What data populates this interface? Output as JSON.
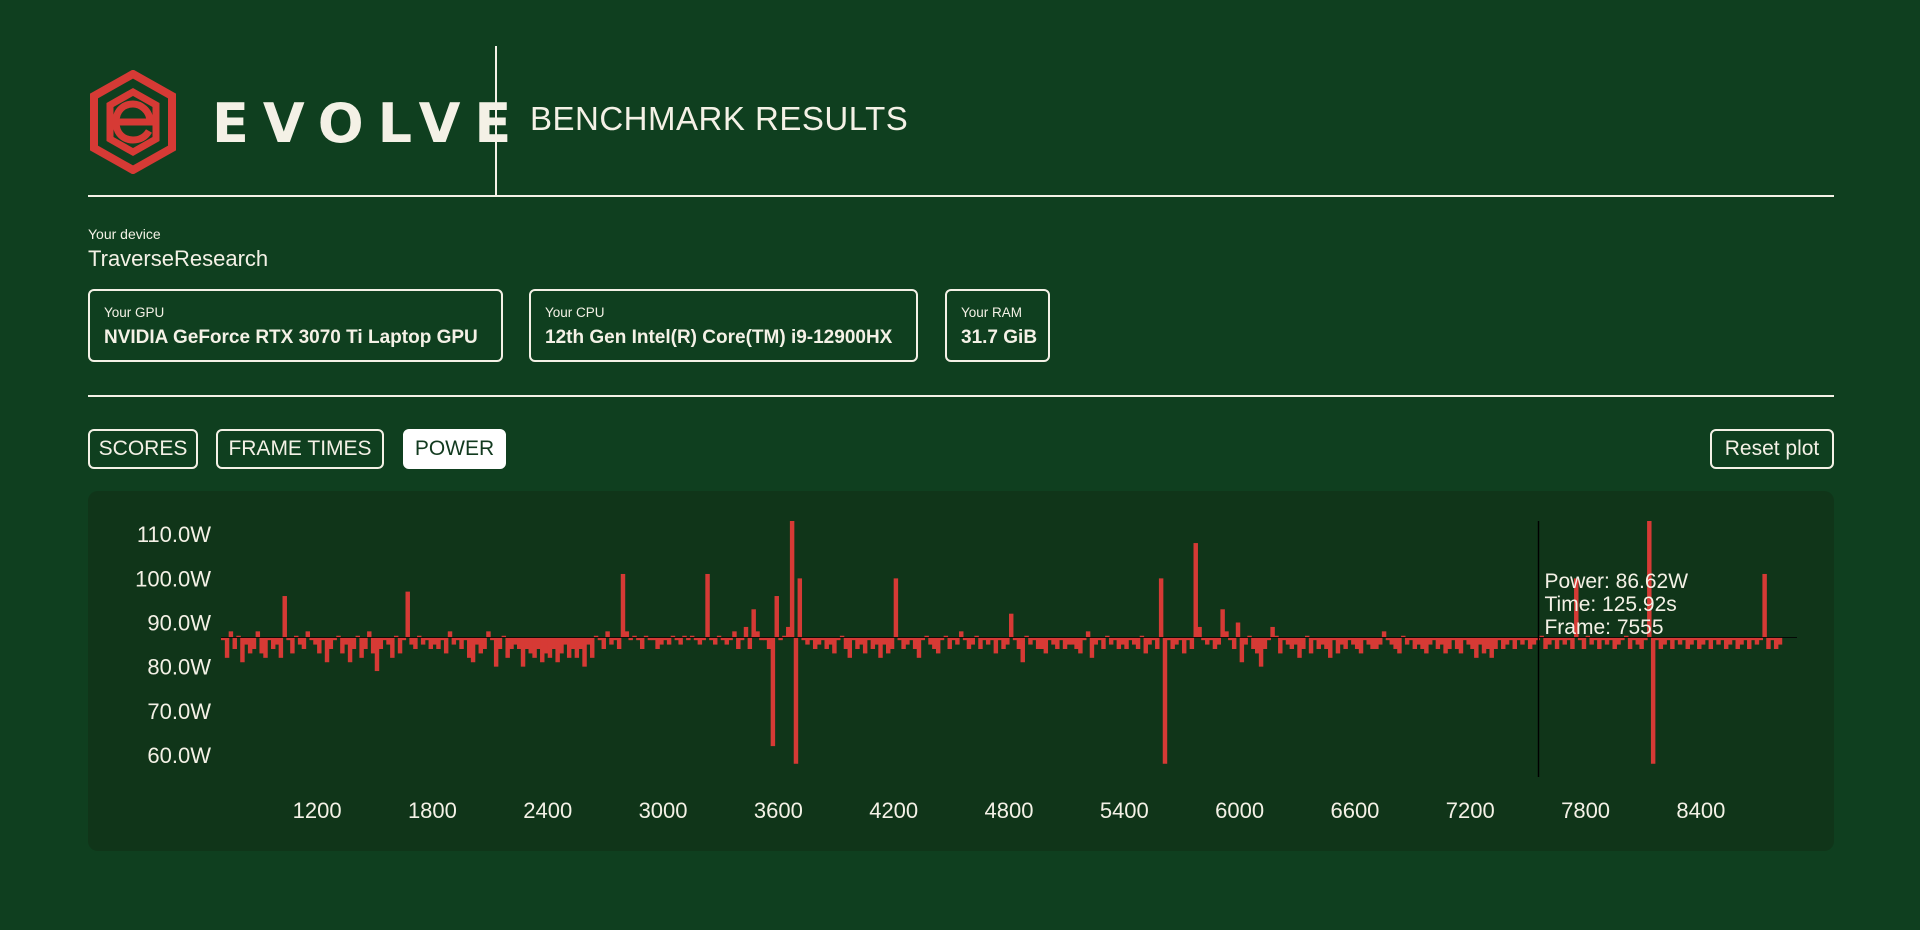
{
  "header": {
    "brand": "EVOLVE",
    "title": "BENCHMARK RESULTS"
  },
  "device": {
    "caption": "Your device",
    "name": "TraverseResearch",
    "gpu": {
      "caption": "Your GPU",
      "value": "NVIDIA GeForce RTX 3070 Ti Laptop GPU"
    },
    "cpu": {
      "caption": "Your CPU",
      "value": "12th Gen Intel(R) Core(TM) i9-12900HX"
    },
    "ram": {
      "caption": "Your RAM",
      "value": "31.7 GiB"
    }
  },
  "tabs": [
    {
      "label": "SCORES",
      "active": false
    },
    {
      "label": "FRAME TIMES",
      "active": false
    },
    {
      "label": "POWER",
      "active": true
    }
  ],
  "reset_label": "Reset plot",
  "colors": {
    "background": "#0f3f1f",
    "panel": "#103519",
    "accent": "#d63a35",
    "foreground": "#f4f1e6"
  },
  "chart_data": {
    "type": "bar",
    "x_label": "",
    "y_label": "",
    "xlim": [
      700,
      8900
    ],
    "ylim": [
      55,
      113
    ],
    "yticks": [
      "110.0W",
      "100.0W",
      "90.0W",
      "80.0W",
      "70.0W",
      "60.0W"
    ],
    "ytick_values": [
      110,
      100,
      90,
      80,
      70,
      60
    ],
    "xticks": [
      "1200",
      "1800",
      "2400",
      "3000",
      "3600",
      "4200",
      "4800",
      "5400",
      "6000",
      "6600",
      "7200",
      "7800",
      "8400"
    ],
    "xtick_values": [
      1200,
      1800,
      2400,
      3000,
      3600,
      4200,
      4800,
      5400,
      6000,
      6600,
      7200,
      7800,
      8400
    ],
    "baseline": 86.6,
    "series": [
      {
        "color": "#d63a35",
        "x_start": 700,
        "x_step": 20,
        "values": [
          86,
          82,
          88,
          84,
          87,
          81,
          85,
          83,
          84,
          88,
          83,
          82,
          86,
          84,
          85,
          82,
          96,
          86,
          83,
          87,
          85,
          84,
          88,
          86,
          85,
          83,
          86,
          81,
          84,
          86,
          87,
          83,
          85,
          81,
          84,
          87,
          82,
          84,
          88,
          83,
          79,
          84,
          86,
          85,
          82,
          87,
          83,
          86,
          97,
          85,
          84,
          87,
          85,
          86,
          84,
          85,
          84,
          86,
          83,
          88,
          85,
          86,
          84,
          86,
          82,
          81,
          85,
          83,
          84,
          88,
          86,
          80,
          84,
          87,
          82,
          84,
          85,
          84,
          80,
          84,
          83,
          82,
          84,
          81,
          83,
          82,
          84,
          81,
          83,
          85,
          82,
          84,
          82,
          84,
          80,
          85,
          82,
          87,
          86,
          84,
          88,
          85,
          86,
          84,
          101,
          88,
          86,
          87,
          86,
          84,
          87,
          86,
          86,
          84,
          85,
          86,
          85,
          87,
          86,
          85,
          87,
          86,
          87,
          86,
          85,
          86,
          101,
          86,
          85,
          87,
          86,
          85,
          86,
          88,
          84,
          86,
          89,
          84,
          93,
          88,
          86,
          86,
          84,
          62,
          96,
          86,
          87,
          89,
          113,
          58,
          100,
          86,
          85,
          86,
          84,
          85,
          86,
          84,
          85,
          83,
          86,
          87,
          84,
          82,
          86,
          84,
          85,
          83,
          86,
          84,
          85,
          82,
          85,
          83,
          84,
          100,
          86,
          84,
          85,
          86,
          84,
          82,
          86,
          87,
          85,
          84,
          83,
          86,
          87,
          84,
          86,
          85,
          88,
          86,
          84,
          85,
          87,
          84,
          86,
          85,
          86,
          83,
          86,
          84,
          85,
          92,
          86,
          84,
          81,
          87,
          85,
          86,
          84,
          84,
          83,
          86,
          85,
          84,
          86,
          84,
          85,
          85,
          84,
          83,
          86,
          88,
          82,
          85,
          86,
          84,
          87,
          85,
          86,
          84,
          85,
          84,
          86,
          85,
          84,
          87,
          83,
          85,
          86,
          84,
          100,
          58,
          86,
          84,
          85,
          86,
          83,
          86,
          84,
          108,
          89,
          86,
          85,
          86,
          84,
          85,
          93,
          88,
          86,
          84,
          90,
          81,
          85,
          87,
          84,
          83,
          80,
          84,
          86,
          89,
          87,
          83,
          86,
          85,
          84,
          85,
          82,
          84,
          87,
          83,
          86,
          84,
          85,
          84,
          82,
          86,
          83,
          85,
          84,
          86,
          85,
          84,
          83,
          86,
          85,
          84,
          84,
          85,
          88,
          86,
          85,
          84,
          83,
          87,
          85,
          86,
          84,
          85,
          84,
          83,
          85,
          86,
          84,
          85,
          83,
          84,
          86,
          84,
          83,
          86,
          85,
          84,
          82,
          85,
          83,
          84,
          82,
          84,
          86,
          84,
          85,
          86,
          84,
          86,
          85,
          86,
          84,
          85,
          86,
          87,
          84,
          85,
          86,
          84,
          86,
          85,
          86,
          84,
          100,
          86,
          84,
          87,
          85,
          86,
          84,
          86,
          85,
          86,
          84,
          85,
          86,
          87,
          84,
          86,
          85,
          84,
          86,
          113,
          58,
          86,
          84,
          85,
          86,
          84,
          86,
          85,
          86,
          84,
          85,
          86,
          84,
          85,
          86,
          84,
          86,
          85,
          86,
          84,
          85,
          86,
          84,
          85,
          86,
          84,
          86,
          85,
          86,
          101,
          84,
          86,
          84,
          85
        ]
      }
    ],
    "highlight": {
      "x": 7555,
      "lines": [
        "Power: 86.62W",
        "Time: 125.92s",
        "Frame: 7555"
      ]
    }
  }
}
